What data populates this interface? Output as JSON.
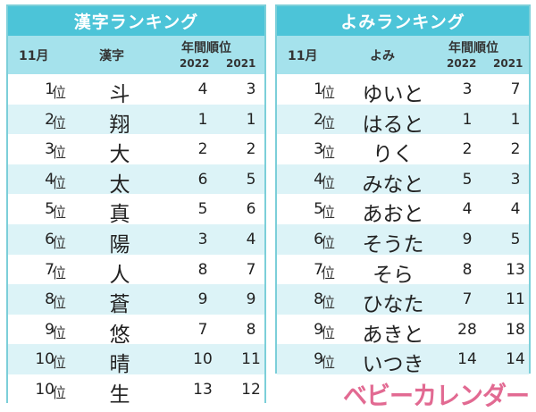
{
  "kanji_table": {
    "title": "漢字ランキング",
    "headers": {
      "month": "11月",
      "item": "漢字",
      "annual": "年間順位",
      "year1": "2022",
      "year2": "2021"
    },
    "rank_suffix": "位",
    "rows": [
      {
        "rank": "1",
        "item": "斗",
        "y2022": "4",
        "y2021": "3"
      },
      {
        "rank": "2",
        "item": "翔",
        "y2022": "1",
        "y2021": "1"
      },
      {
        "rank": "3",
        "item": "大",
        "y2022": "2",
        "y2021": "2"
      },
      {
        "rank": "4",
        "item": "太",
        "y2022": "6",
        "y2021": "5"
      },
      {
        "rank": "5",
        "item": "真",
        "y2022": "5",
        "y2021": "6"
      },
      {
        "rank": "6",
        "item": "陽",
        "y2022": "3",
        "y2021": "4"
      },
      {
        "rank": "7",
        "item": "人",
        "y2022": "8",
        "y2021": "7"
      },
      {
        "rank": "8",
        "item": "蒼",
        "y2022": "9",
        "y2021": "9"
      },
      {
        "rank": "9",
        "item": "悠",
        "y2022": "7",
        "y2021": "8"
      },
      {
        "rank": "10",
        "item": "晴",
        "y2022": "10",
        "y2021": "11"
      },
      {
        "rank": "10",
        "item": "生",
        "y2022": "13",
        "y2021": "12"
      }
    ]
  },
  "yomi_table": {
    "title": "よみランキング",
    "headers": {
      "month": "11月",
      "item": "よみ",
      "annual": "年間順位",
      "year1": "2022",
      "year2": "2021"
    },
    "rank_suffix": "位",
    "rows": [
      {
        "rank": "1",
        "item": "ゆいと",
        "y2022": "3",
        "y2021": "7"
      },
      {
        "rank": "2",
        "item": "はると",
        "y2022": "1",
        "y2021": "1"
      },
      {
        "rank": "3",
        "item": "りく",
        "y2022": "2",
        "y2021": "2"
      },
      {
        "rank": "4",
        "item": "みなと",
        "y2022": "5",
        "y2021": "3"
      },
      {
        "rank": "5",
        "item": "あおと",
        "y2022": "4",
        "y2021": "4"
      },
      {
        "rank": "6",
        "item": "そうた",
        "y2022": "9",
        "y2021": "5"
      },
      {
        "rank": "7",
        "item": "そら",
        "y2022": "8",
        "y2021": "13"
      },
      {
        "rank": "8",
        "item": "ひなた",
        "y2022": "7",
        "y2021": "11"
      },
      {
        "rank": "9",
        "item": "あきと",
        "y2022": "28",
        "y2021": "18"
      },
      {
        "rank": "9",
        "item": "いつき",
        "y2022": "14",
        "y2021": "14"
      }
    ]
  },
  "brand": {
    "logo_text": "ベビーカレンダー",
    "color": "#e26a92"
  },
  "colors": {
    "title_bar": "#4cc4d8",
    "subheader": "#a5e2ec",
    "row_alt": "#dcf3f7",
    "border": "#7ccfd9"
  }
}
